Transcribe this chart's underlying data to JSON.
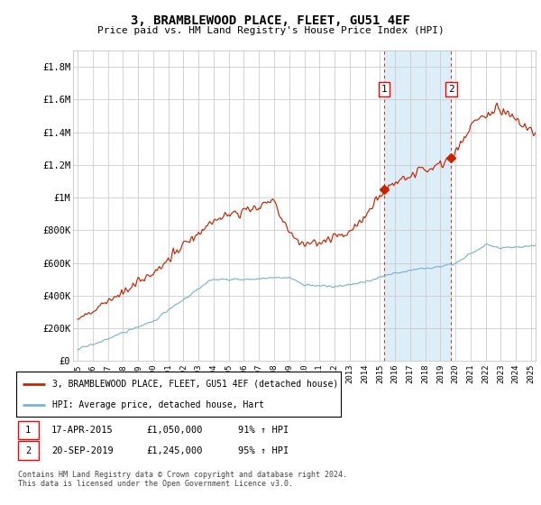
{
  "title": "3, BRAMBLEWOOD PLACE, FLEET, GU51 4EF",
  "subtitle": "Price paid vs. HM Land Registry's House Price Index (HPI)",
  "ylabel_ticks": [
    "£0",
    "£200K",
    "£400K",
    "£600K",
    "£800K",
    "£1M",
    "£1.2M",
    "£1.4M",
    "£1.6M",
    "£1.8M"
  ],
  "ytick_values": [
    0,
    200000,
    400000,
    600000,
    800000,
    1000000,
    1200000,
    1400000,
    1600000,
    1800000
  ],
  "ylim": [
    0,
    1900000
  ],
  "xlim_start": 1994.7,
  "xlim_end": 2025.3,
  "sale1_x": 2015.29,
  "sale1_y": 1050000,
  "sale1_label": "1",
  "sale2_x": 2019.72,
  "sale2_y": 1245000,
  "sale2_label": "2",
  "legend_line1": "3, BRAMBLEWOOD PLACE, FLEET, GU51 4EF (detached house)",
  "legend_line2": "HPI: Average price, detached house, Hart",
  "table_row1": [
    "1",
    "17-APR-2015",
    "£1,050,000",
    "91% ↑ HPI"
  ],
  "table_row2": [
    "2",
    "20-SEP-2019",
    "£1,245,000",
    "95% ↑ HPI"
  ],
  "footer": "Contains HM Land Registry data © Crown copyright and database right 2024.\nThis data is licensed under the Open Government Licence v3.0.",
  "hpi_color": "#7ab4d8",
  "price_color": "#cc2200",
  "shade_color": "#ddeef8",
  "vline_color": "#cc2200",
  "grid_color": "#cccccc",
  "bg_color": "#ffffff"
}
